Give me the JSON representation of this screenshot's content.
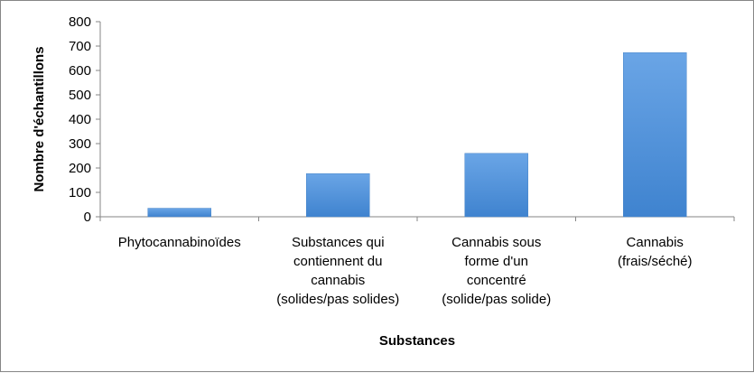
{
  "chart_data": {
    "type": "bar",
    "categories": [
      [
        "Phytocannabinoïdes"
      ],
      [
        "Substances qui",
        "contiennent du",
        "cannabis",
        "(solides/pas solides)"
      ],
      [
        "Cannabis sous",
        "forme d'un",
        "concentré",
        "(solide/pas solide)"
      ],
      [
        "Cannabis",
        "(frais/séché)"
      ]
    ],
    "values": [
      35,
      177,
      260,
      673
    ],
    "xlabel": "Substances",
    "ylabel": "Nombre d'échantillons",
    "ylim": [
      0,
      800
    ],
    "yticks": [
      "0",
      "100",
      "200",
      "300",
      "400",
      "500",
      "600",
      "700",
      "800"
    ],
    "grid": false,
    "legend": "none",
    "colors": {
      "bar_top": "#6aa5e6",
      "bar_bottom": "#3f83cf",
      "axis": "#868686"
    }
  }
}
